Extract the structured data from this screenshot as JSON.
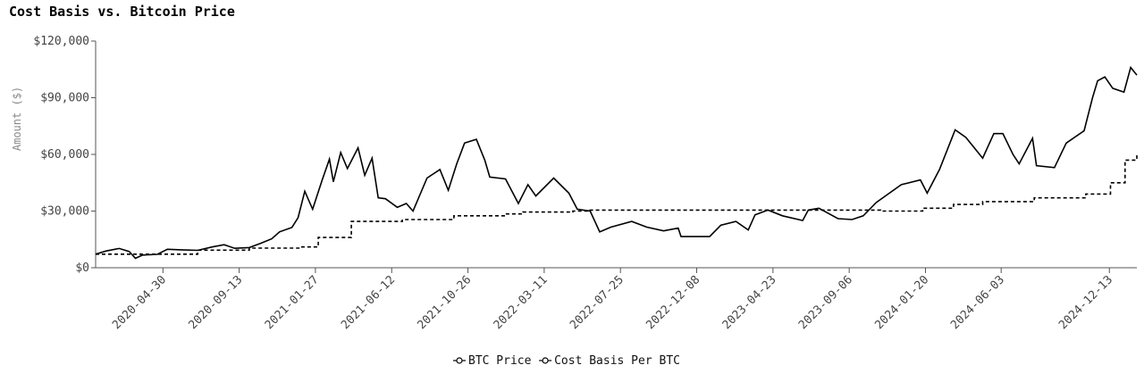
{
  "chart_data": {
    "type": "line",
    "title": "Cost Basis vs. Bitcoin Price",
    "ylabel": "Amount ($)",
    "xlabel": "",
    "x_range": [
      "2020-01-01",
      "2025-01-31"
    ],
    "ylim": [
      0,
      120000
    ],
    "y_ticks": [
      0,
      30000,
      60000,
      90000,
      120000
    ],
    "y_tick_labels": [
      "$0",
      "$30,000",
      "$60,000",
      "$90,000",
      "$120,000"
    ],
    "x_ticks": [
      "2020-04-30",
      "2020-09-13",
      "2021-01-27",
      "2021-06-12",
      "2021-10-26",
      "2022-03-11",
      "2022-07-25",
      "2022-12-08",
      "2023-04-23",
      "2023-09-06",
      "2024-01-20",
      "2024-06-03",
      "2024-12-13"
    ],
    "grid": false,
    "legend_position": "bottom-center",
    "series": [
      {
        "name": "BTC Price",
        "style": "solid",
        "color": "#000000",
        "points": [
          [
            "2020-01-01",
            7200
          ],
          [
            "2020-01-20",
            8900
          ],
          [
            "2020-02-12",
            10200
          ],
          [
            "2020-03-01",
            8600
          ],
          [
            "2020-03-12",
            5000
          ],
          [
            "2020-03-25",
            6700
          ],
          [
            "2020-04-20",
            7100
          ],
          [
            "2020-05-08",
            9800
          ],
          [
            "2020-06-01",
            9500
          ],
          [
            "2020-07-01",
            9200
          ],
          [
            "2020-07-27",
            11000
          ],
          [
            "2020-08-17",
            12200
          ],
          [
            "2020-09-05",
            10300
          ],
          [
            "2020-10-01",
            10700
          ],
          [
            "2020-10-21",
            12900
          ],
          [
            "2020-11-10",
            15300
          ],
          [
            "2020-11-24",
            19000
          ],
          [
            "2020-12-16",
            21300
          ],
          [
            "2020-12-27",
            26500
          ],
          [
            "2021-01-08",
            40500
          ],
          [
            "2021-01-22",
            31000
          ],
          [
            "2021-02-08",
            46500
          ],
          [
            "2021-02-21",
            57500
          ],
          [
            "2021-02-28",
            45500
          ],
          [
            "2021-03-13",
            61000
          ],
          [
            "2021-03-25",
            52500
          ],
          [
            "2021-04-13",
            63500
          ],
          [
            "2021-04-25",
            49000
          ],
          [
            "2021-05-08",
            58000
          ],
          [
            "2021-05-19",
            37000
          ],
          [
            "2021-06-01",
            36500
          ],
          [
            "2021-06-22",
            32000
          ],
          [
            "2021-07-08",
            34000
          ],
          [
            "2021-07-20",
            30000
          ],
          [
            "2021-08-14",
            47500
          ],
          [
            "2021-09-06",
            52000
          ],
          [
            "2021-09-21",
            41000
          ],
          [
            "2021-10-06",
            55000
          ],
          [
            "2021-10-20",
            66000
          ],
          [
            "2021-11-10",
            68000
          ],
          [
            "2021-11-25",
            57000
          ],
          [
            "2021-12-04",
            48000
          ],
          [
            "2022-01-01",
            47000
          ],
          [
            "2022-01-24",
            34000
          ],
          [
            "2022-02-10",
            44000
          ],
          [
            "2022-02-24",
            38000
          ],
          [
            "2022-03-28",
            47500
          ],
          [
            "2022-04-24",
            39500
          ],
          [
            "2022-05-09",
            31000
          ],
          [
            "2022-06-01",
            30000
          ],
          [
            "2022-06-18",
            19000
          ],
          [
            "2022-07-08",
            21500
          ],
          [
            "2022-08-14",
            24500
          ],
          [
            "2022-09-10",
            21500
          ],
          [
            "2022-10-10",
            19500
          ],
          [
            "2022-11-05",
            21000
          ],
          [
            "2022-11-10",
            16500
          ],
          [
            "2022-12-31",
            16500
          ],
          [
            "2023-01-20",
            22500
          ],
          [
            "2023-02-16",
            24500
          ],
          [
            "2023-03-10",
            20000
          ],
          [
            "2023-03-22",
            28000
          ],
          [
            "2023-04-14",
            30500
          ],
          [
            "2023-05-10",
            27500
          ],
          [
            "2023-06-15",
            25000
          ],
          [
            "2023-06-25",
            30500
          ],
          [
            "2023-07-14",
            31500
          ],
          [
            "2023-08-17",
            26000
          ],
          [
            "2023-09-11",
            25500
          ],
          [
            "2023-10-01",
            27500
          ],
          [
            "2023-10-24",
            34500
          ],
          [
            "2023-12-08",
            44000
          ],
          [
            "2024-01-11",
            46500
          ],
          [
            "2024-01-23",
            39500
          ],
          [
            "2024-02-14",
            52000
          ],
          [
            "2024-03-05",
            67000
          ],
          [
            "2024-03-13",
            73000
          ],
          [
            "2024-04-01",
            69000
          ],
          [
            "2024-05-01",
            58000
          ],
          [
            "2024-05-21",
            71000
          ],
          [
            "2024-06-06",
            71000
          ],
          [
            "2024-06-24",
            60000
          ],
          [
            "2024-07-05",
            55000
          ],
          [
            "2024-07-29",
            68500
          ],
          [
            "2024-08-05",
            54000
          ],
          [
            "2024-09-06",
            53000
          ],
          [
            "2024-09-27",
            66000
          ],
          [
            "2024-10-29",
            72500
          ],
          [
            "2024-11-13",
            90000
          ],
          [
            "2024-11-22",
            99000
          ],
          [
            "2024-12-05",
            101000
          ],
          [
            "2024-12-19",
            95000
          ],
          [
            "2025-01-08",
            93000
          ],
          [
            "2025-01-20",
            106000
          ],
          [
            "2025-01-31",
            102000
          ]
        ]
      },
      {
        "name": "Cost Basis Per BTC",
        "style": "dashed-step",
        "color": "#000000",
        "points": [
          [
            "2020-01-01",
            7200
          ],
          [
            "2020-04-01",
            7200
          ],
          [
            "2020-07-01",
            9300
          ],
          [
            "2020-10-01",
            10400
          ],
          [
            "2021-01-01",
            11000
          ],
          [
            "2021-02-01",
            16000
          ],
          [
            "2021-04-01",
            24500
          ],
          [
            "2021-07-01",
            25500
          ],
          [
            "2021-10-01",
            27500
          ],
          [
            "2022-01-01",
            28500
          ],
          [
            "2022-02-01",
            29500
          ],
          [
            "2022-05-01",
            30000
          ],
          [
            "2022-06-01",
            30500
          ],
          [
            "2023-09-01",
            30500
          ],
          [
            "2023-11-01",
            30000
          ],
          [
            "2024-01-15",
            31500
          ],
          [
            "2024-03-10",
            33500
          ],
          [
            "2024-05-01",
            35000
          ],
          [
            "2024-08-01",
            37000
          ],
          [
            "2024-11-01",
            39000
          ],
          [
            "2024-12-15",
            45000
          ],
          [
            "2025-01-10",
            57000
          ],
          [
            "2025-01-31",
            60000
          ]
        ]
      }
    ]
  }
}
